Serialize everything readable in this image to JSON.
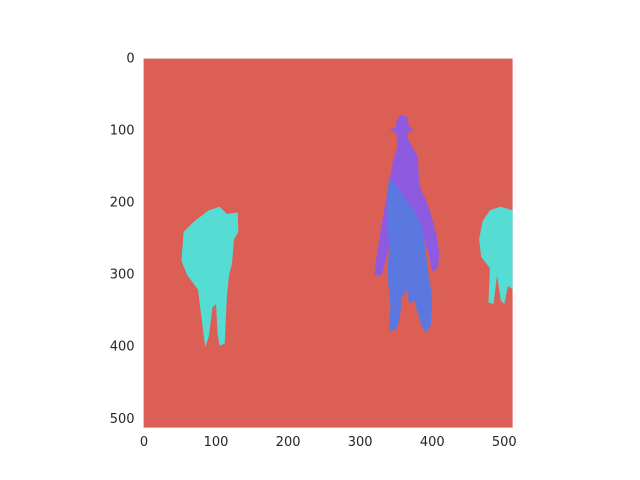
{
  "chart_data": {
    "type": "image",
    "xlim": [
      -0.5,
      511.5
    ],
    "ylim": [
      511.5,
      -0.5
    ],
    "xticks": [
      0,
      100,
      200,
      300,
      400,
      500
    ],
    "yticks": [
      0,
      100,
      200,
      300,
      400,
      500
    ],
    "grid": false
  }
}
